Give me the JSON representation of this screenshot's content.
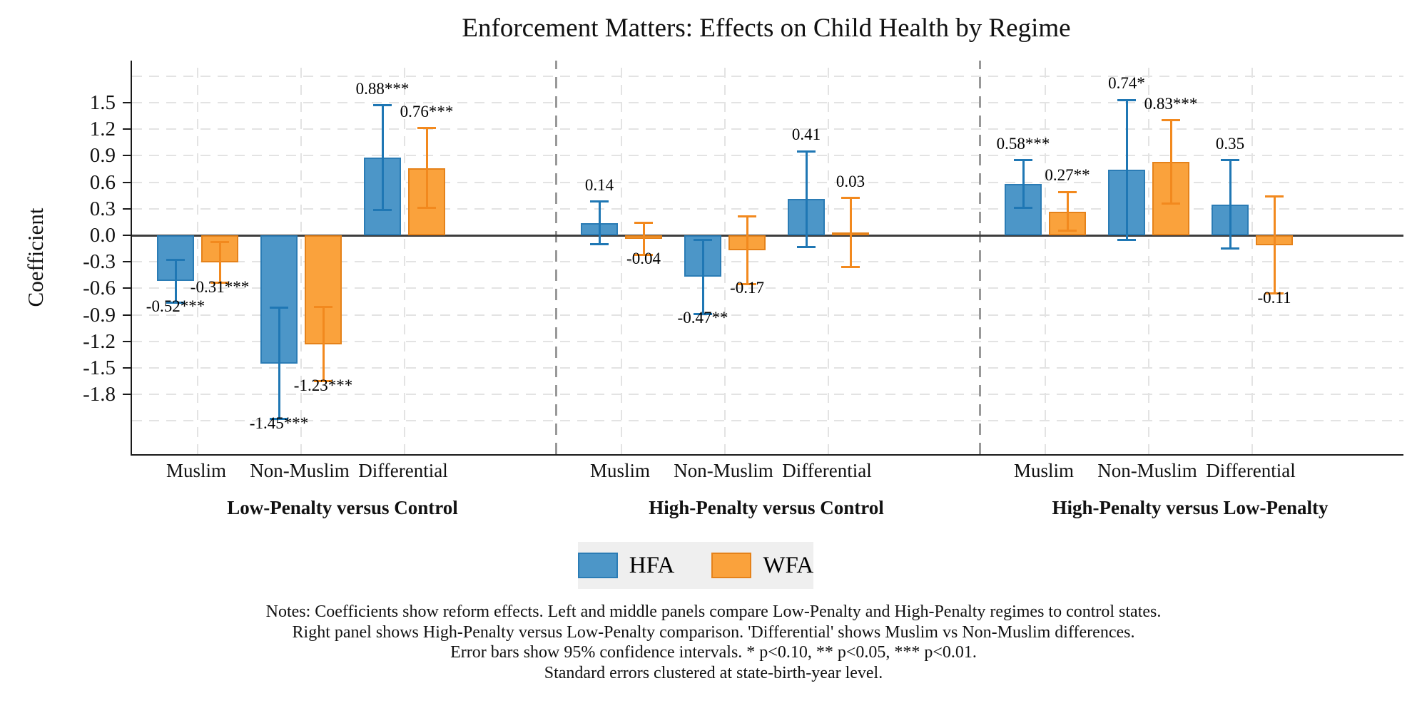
{
  "chart_data": {
    "type": "bar",
    "title": "Enforcement Matters: Effects on Child Health by Regime",
    "ylabel": "Coefficient",
    "ylim": [
      -2.48,
      1.98
    ],
    "grid": true,
    "yticks": [
      {
        "value": 1.5,
        "label": "1.5"
      },
      {
        "value": 1.2,
        "label": "1.2"
      },
      {
        "value": 0.9,
        "label": "0.9"
      },
      {
        "value": 0.6,
        "label": "0.6"
      },
      {
        "value": 0.3,
        "label": "0.3"
      },
      {
        "value": 0.0,
        "label": "0.0"
      },
      {
        "value": -0.3,
        "label": "-0.3"
      },
      {
        "value": -0.6,
        "label": "-0.6"
      },
      {
        "value": -0.9,
        "label": "-0.9"
      },
      {
        "value": -1.2,
        "label": "-1.2"
      },
      {
        "value": -1.5,
        "label": "-1.5"
      },
      {
        "value": -1.8,
        "label": "-1.8"
      }
    ],
    "unlabeled_gridlines": [
      1.8,
      -2.1
    ],
    "series": [
      "HFA",
      "WFA"
    ],
    "series_styles": {
      "HFA": {
        "fill": "#4C96C8",
        "stroke": "#2B7CB5",
        "error": "#1F77B4"
      },
      "WFA": {
        "fill": "#FAA23C",
        "stroke": "#E5821A",
        "error": "#F2891E"
      }
    },
    "panels": [
      {
        "title": "Low-Penalty versus Control",
        "groups": [
          {
            "category": "Muslim",
            "bars": [
              {
                "series": "HFA",
                "value": -0.52,
                "label": "-0.52***",
                "ci_low": -0.76,
                "ci_high": -0.28
              },
              {
                "series": "WFA",
                "value": -0.31,
                "label": "-0.31***",
                "ci_low": -0.54,
                "ci_high": -0.08
              }
            ]
          },
          {
            "category": "Non-Muslim",
            "bars": [
              {
                "series": "HFA",
                "value": -1.45,
                "label": "-1.45***",
                "ci_low": -2.08,
                "ci_high": -0.82
              },
              {
                "series": "WFA",
                "value": -1.23,
                "label": "-1.23***",
                "ci_low": -1.65,
                "ci_high": -0.81
              }
            ]
          },
          {
            "category": "Differential",
            "bars": [
              {
                "series": "HFA",
                "value": 0.88,
                "label": "0.88***",
                "ci_low": 0.29,
                "ci_high": 1.47
              },
              {
                "series": "WFA",
                "value": 0.76,
                "label": "0.76***",
                "ci_low": 0.31,
                "ci_high": 1.21
              }
            ]
          }
        ]
      },
      {
        "title": "High-Penalty versus Control",
        "groups": [
          {
            "category": "Muslim",
            "bars": [
              {
                "series": "HFA",
                "value": 0.14,
                "label": "0.14",
                "ci_low": -0.1,
                "ci_high": 0.38
              },
              {
                "series": "WFA",
                "value": -0.04,
                "label": "-0.04",
                "ci_low": -0.22,
                "ci_high": 0.14
              }
            ]
          },
          {
            "category": "Non-Muslim",
            "bars": [
              {
                "series": "HFA",
                "value": -0.47,
                "label": "-0.47**",
                "ci_low": -0.89,
                "ci_high": -0.05
              },
              {
                "series": "WFA",
                "value": -0.17,
                "label": "-0.17",
                "ci_low": -0.55,
                "ci_high": 0.21
              }
            ]
          },
          {
            "category": "Differential",
            "bars": [
              {
                "series": "HFA",
                "value": 0.41,
                "label": "0.41",
                "ci_low": -0.13,
                "ci_high": 0.95
              },
              {
                "series": "WFA",
                "value": 0.03,
                "label": "0.03",
                "ci_low": -0.36,
                "ci_high": 0.42
              }
            ]
          }
        ]
      },
      {
        "title": "High-Penalty versus Low-Penalty",
        "groups": [
          {
            "category": "Muslim",
            "bars": [
              {
                "series": "HFA",
                "value": 0.58,
                "label": "0.58***",
                "ci_low": 0.31,
                "ci_high": 0.85
              },
              {
                "series": "WFA",
                "value": 0.27,
                "label": "0.27**",
                "ci_low": 0.05,
                "ci_high": 0.49
              }
            ]
          },
          {
            "category": "Non-Muslim",
            "bars": [
              {
                "series": "HFA",
                "value": 0.74,
                "label": "0.74*",
                "ci_low": -0.05,
                "ci_high": 1.53
              },
              {
                "series": "WFA",
                "value": 0.83,
                "label": "0.83***",
                "ci_low": 0.36,
                "ci_high": 1.3
              }
            ]
          },
          {
            "category": "Differential",
            "bars": [
              {
                "series": "HFA",
                "value": 0.35,
                "label": "0.35",
                "ci_low": -0.15,
                "ci_high": 0.85
              },
              {
                "series": "WFA",
                "value": -0.11,
                "label": "-0.11",
                "ci_low": -0.66,
                "ci_high": 0.44
              }
            ]
          }
        ]
      }
    ],
    "legend": {
      "position": "bottom",
      "entries": [
        {
          "label": "HFA",
          "color": "#4C96C8"
        },
        {
          "label": "WFA",
          "color": "#FAA23C"
        }
      ]
    }
  },
  "notes": [
    "Notes: Coefficients show reform effects. Left and middle panels compare Low-Penalty and High-Penalty regimes to control states.",
    "Right panel shows High-Penalty versus Low-Penalty comparison. 'Differential' shows Muslim vs Non-Muslim differences.",
    "Error bars show 95% confidence intervals. * p<0.10, ** p<0.05, *** p<0.01.",
    "Standard errors clustered at state-birth-year level."
  ]
}
